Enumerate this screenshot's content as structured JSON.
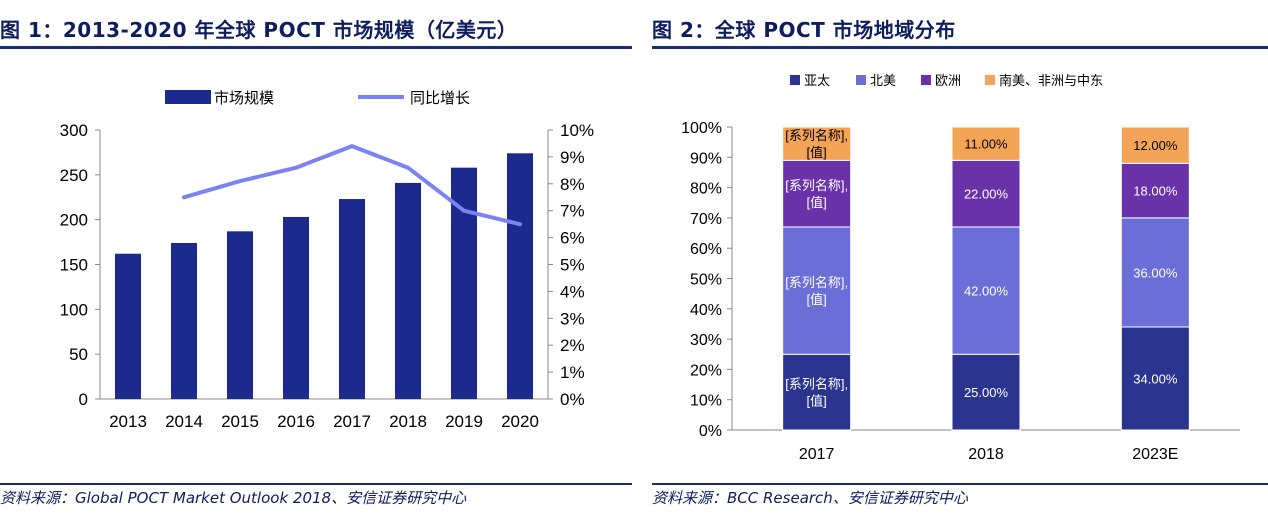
{
  "panel1": {
    "title": "图 1：2013-2020 年全球 POCT 市场规模（亿美元）",
    "source": "资料来源：Global POCT Market Outlook 2018、安信证券研究中心"
  },
  "panel2": {
    "title": "图 2：全球 POCT 市场地域分布",
    "source": "资料来源：BCC Research、安信证券研究中心"
  },
  "chart_data": [
    {
      "type": "bar",
      "title": "",
      "categories": [
        "2013",
        "2014",
        "2015",
        "2016",
        "2017",
        "2018",
        "2019",
        "2020"
      ],
      "series": [
        {
          "name": "市场规模",
          "type": "bar",
          "axis": "left",
          "color": "#1b2a8c",
          "values": [
            162,
            174,
            187,
            203,
            223,
            241,
            258,
            274
          ]
        },
        {
          "name": "同比增长",
          "type": "line",
          "axis": "right",
          "color": "#7b82f2",
          "values": [
            null,
            7.5,
            8.1,
            8.6,
            9.4,
            8.6,
            7.0,
            6.5
          ]
        }
      ],
      "yticks_left": [
        "0",
        "50",
        "100",
        "150",
        "200",
        "250",
        "300"
      ],
      "ylim_left": [
        0,
        300
      ],
      "yticks_right": [
        "0%",
        "1%",
        "2%",
        "3%",
        "4%",
        "5%",
        "6%",
        "7%",
        "8%",
        "9%",
        "10%"
      ],
      "ylim_right": [
        0,
        10
      ],
      "legend_position": "top",
      "grid": false
    },
    {
      "type": "bar",
      "stacked": true,
      "percent": true,
      "title": "",
      "categories": [
        "2017",
        "2018",
        "2023E"
      ],
      "series": [
        {
          "name": "亚太",
          "color": "#2b3590",
          "values": [
            25,
            25,
            34
          ],
          "labels": [
            "[系列名称],\n[值]",
            "25.00%",
            "34.00%"
          ]
        },
        {
          "name": "北美",
          "color": "#6a6ed6",
          "values": [
            42,
            42,
            36
          ],
          "labels": [
            "[系列名称],\n[值]",
            "42.00%",
            "36.00%"
          ]
        },
        {
          "name": "欧洲",
          "color": "#6a32a8",
          "values": [
            22,
            22,
            18
          ],
          "labels": [
            "[系列名称],\n[值]",
            "22.00%",
            "18.00%"
          ]
        },
        {
          "name": "南美、非洲与中东",
          "color": "#f4a457",
          "values": [
            11,
            11,
            12
          ],
          "labels": [
            "[系列名称],\n[值]",
            "11.00%",
            "12.00%"
          ]
        }
      ],
      "yticks": [
        "0%",
        "10%",
        "20%",
        "30%",
        "40%",
        "50%",
        "60%",
        "70%",
        "80%",
        "90%",
        "100%"
      ],
      "ylim": [
        0,
        100
      ],
      "legend_position": "top",
      "grid": false
    }
  ]
}
